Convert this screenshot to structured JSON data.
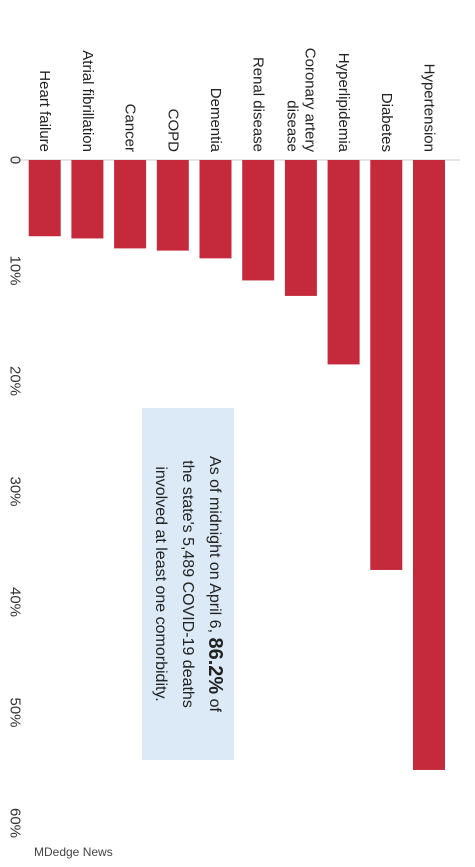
{
  "chart_data": {
    "type": "bar",
    "orientation": "vertical-downward",
    "categories": [
      "Hypertension",
      "Diabetes",
      "Hyperlipidemia",
      "Coronary artery disease",
      "Renal disease",
      "Dementia",
      "COPD",
      "Cancer",
      "Atrial fibrillation",
      "Heart failure"
    ],
    "category_lines": [
      [
        "Hypertension"
      ],
      [
        "Diabetes"
      ],
      [
        "Hyperlipidemia"
      ],
      [
        "Coronary artery",
        "disease"
      ],
      [
        "Renal disease"
      ],
      [
        "Dementia"
      ],
      [
        "COPD"
      ],
      [
        "Cancer"
      ],
      [
        "Atrial fibrillation"
      ],
      [
        "Heart failure"
      ]
    ],
    "values": [
      55.2,
      37.1,
      18.5,
      12.3,
      10.9,
      8.9,
      8.2,
      8.0,
      7.1,
      6.9
    ],
    "value_axis": {
      "min": 0,
      "max": 60,
      "ticks": [
        0,
        10,
        20,
        30,
        40,
        50,
        60
      ],
      "tick_labels": [
        "0",
        "10%",
        "20%",
        "30%",
        "40%",
        "50%",
        "60%"
      ]
    },
    "bar_color": "#c42a3c",
    "annotation": {
      "lines": [
        [
          "As of midnight on April 6, ",
          "86.2%",
          " of"
        ],
        [
          "the state's 5,489 COVID-19 deaths"
        ],
        [
          "involved at least one comorbidity."
        ]
      ],
      "background": "#dbeaf6"
    }
  },
  "credit": "MDedge News"
}
